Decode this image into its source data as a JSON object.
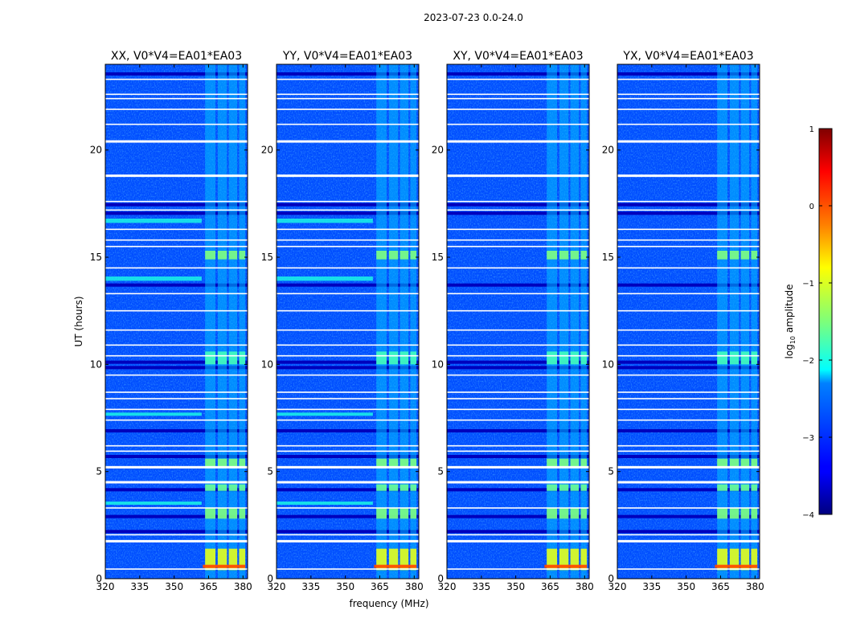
{
  "chart_data": {
    "type": "heatmap",
    "suptitle": "2023-07-23 0.0-24.0",
    "xlabel": "frequency (MHz)",
    "ylabel": "UT (hours)",
    "xlim": [
      320,
      382
    ],
    "ylim": [
      0,
      24
    ],
    "xticks": [
      320,
      335,
      350,
      365,
      380
    ],
    "yticks": [
      0,
      5,
      10,
      15,
      20
    ],
    "colorbar": {
      "label": "log10 amplitude",
      "label_main": "log",
      "label_sub": "10",
      "label_tail": " amplitude",
      "vmin": -4,
      "vmax": 1,
      "ticks": [
        -4,
        -3,
        -2,
        -1,
        0,
        1
      ],
      "colormap": "jet"
    },
    "panels": [
      {
        "title": "XX, V0*V4=EA01*EA03",
        "polarization": "XX"
      },
      {
        "title": "YY, V0*V4=EA01*EA03",
        "polarization": "YY"
      },
      {
        "title": "XY, V0*V4=EA01*EA03",
        "polarization": "XY"
      },
      {
        "title": "YX, V0*V4=EA01*EA03",
        "polarization": "YX"
      }
    ],
    "background_log_amplitude": -3.0,
    "rfi_band_mhz": [
      362,
      381
    ],
    "rfi_channels_mhz": [
      {
        "start": 363.5,
        "end": 368.0
      },
      {
        "start": 369.0,
        "end": 373.0
      },
      {
        "start": 373.8,
        "end": 377.5
      },
      {
        "start": 378.3,
        "end": 381.0
      }
    ],
    "flagged_ut_hours": [
      0.45,
      1.75,
      2.05,
      3.3,
      4.5,
      5.2,
      5.95,
      6.2,
      7.4,
      7.9,
      8.4,
      8.7,
      9.5,
      10.4,
      10.9,
      11.6,
      12.5,
      13.3,
      14.5,
      15.5,
      15.8,
      16.3,
      17.2,
      17.6,
      18.8,
      20.4,
      21.2,
      21.9,
      22.4,
      22.6,
      23.3
    ],
    "thick_flagged_ut_hours": [
      1.75,
      4.5,
      5.2,
      18.8,
      20.4
    ],
    "rfi_bursts_ut_hours": [
      {
        "start": 0.4,
        "end": 1.4,
        "log_amplitude": -1.0
      },
      {
        "start": 2.8,
        "end": 3.3,
        "log_amplitude": -1.5
      },
      {
        "start": 4.1,
        "end": 4.4,
        "log_amplitude": -1.6
      },
      {
        "start": 5.25,
        "end": 5.6,
        "log_amplitude": -1.5
      },
      {
        "start": 10.0,
        "end": 10.6,
        "log_amplitude": -1.8
      },
      {
        "start": 14.9,
        "end": 15.3,
        "log_amplitude": -1.5
      }
    ],
    "strong_rfi_ut_hours": [
      {
        "start": 0.5,
        "end": 0.65,
        "log_amplitude": 0.0
      }
    ],
    "broadband_rfi_ut_hours": [
      {
        "start": 16.6,
        "end": 16.8,
        "panels": [
          "XX",
          "YY"
        ],
        "log_amplitude": -2.0
      },
      {
        "start": 13.9,
        "end": 14.1,
        "panels": [
          "XX",
          "YY"
        ],
        "log_amplitude": -2.0
      },
      {
        "start": 7.6,
        "end": 7.75,
        "panels": [
          "XX",
          "YY"
        ],
        "log_amplitude": -2.0
      },
      {
        "start": 3.45,
        "end": 3.6,
        "panels": [
          "XX",
          "YY"
        ],
        "log_amplitude": -2.0
      }
    ],
    "dark_ut_hours": [
      17.45,
      17.05,
      13.7,
      10.1,
      9.85,
      6.9,
      5.7,
      4.15,
      2.9,
      2.2,
      23.55
    ]
  }
}
